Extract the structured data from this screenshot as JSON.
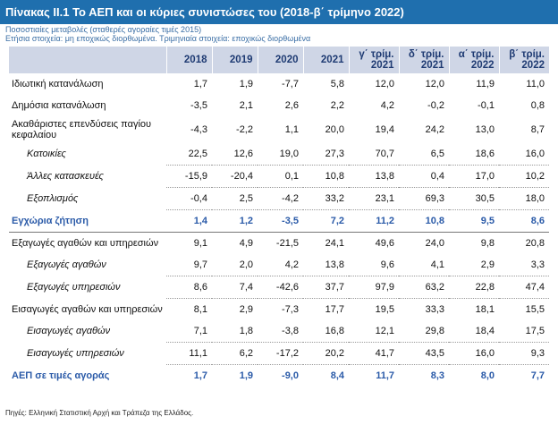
{
  "title": "Πίνακας ΙΙ.1 Το ΑΕΠ και οι κύριες συνιστώσες του (2018-β΄ τρίμηνο 2022)",
  "subtitle1": "Ποσοστιαίες μεταβολές (σταθερές αγοραίες τιμές 2015)",
  "subtitle2": "Ετήσια στοιχεία: μη εποχικώς διορθωμένα. Τριμηνιαία στοιχεία: εποχικώς διορθωμένα",
  "columns": [
    {
      "l1": "2018",
      "l2": ""
    },
    {
      "l1": "2019",
      "l2": ""
    },
    {
      "l1": "2020",
      "l2": ""
    },
    {
      "l1": "2021",
      "l2": ""
    },
    {
      "l1": "γ΄ τρίμ.",
      "l2": "2021"
    },
    {
      "l1": "δ΄ τρίμ.",
      "l2": "2021"
    },
    {
      "l1": "α΄ τρίμ.",
      "l2": "2022"
    },
    {
      "l1": "β΄ τρίμ.",
      "l2": "2022"
    }
  ],
  "rows": [
    {
      "label": "Ιδιωτική κατανάλωση",
      "values": [
        "1,7",
        "1,9",
        "-7,7",
        "5,8",
        "12,0",
        "12,0",
        "11,9",
        "11,0"
      ]
    },
    {
      "label": "Δημόσια κατανάλωση",
      "values": [
        "-3,5",
        "2,1",
        "2,6",
        "2,2",
        "4,2",
        "-0,2",
        "-0,1",
        "0,8"
      ]
    },
    {
      "label": "Ακαθάριστες επενδύσεις παγίου κεφαλαίου",
      "values": [
        "-4,3",
        "-2,2",
        "1,1",
        "20,0",
        "19,4",
        "24,2",
        "13,0",
        "8,7"
      ]
    },
    {
      "label": "Κατοικίες",
      "values": [
        "22,5",
        "12,6",
        "19,0",
        "27,3",
        "70,7",
        "6,5",
        "18,6",
        "16,0"
      ]
    },
    {
      "label": "Άλλες κατασκευές",
      "values": [
        "-15,9",
        "-20,4",
        "0,1",
        "10,8",
        "13,8",
        "0,4",
        "17,0",
        "10,2"
      ]
    },
    {
      "label": "Εξοπλισμός",
      "values": [
        "-0,4",
        "2,5",
        "-4,2",
        "33,2",
        "23,1",
        "69,3",
        "30,5",
        "18,0"
      ]
    },
    {
      "label": "Εγχώρια ζήτηση",
      "values": [
        "1,4",
        "1,2",
        "-3,5",
        "7,2",
        "11,2",
        "10,8",
        "9,5",
        "8,6"
      ]
    },
    {
      "label": "Εξαγωγές αγαθών και υπηρεσιών",
      "values": [
        "9,1",
        "4,9",
        "-21,5",
        "24,1",
        "49,6",
        "24,0",
        "9,8",
        "20,8"
      ]
    },
    {
      "label": "Εξαγωγές αγαθών",
      "values": [
        "9,7",
        "2,0",
        "4,2",
        "13,8",
        "9,6",
        "4,1",
        "2,9",
        "3,3"
      ]
    },
    {
      "label": "Εξαγωγές υπηρεσιών",
      "values": [
        "8,6",
        "7,4",
        "-42,6",
        "37,7",
        "97,9",
        "63,2",
        "22,8",
        "47,4"
      ]
    },
    {
      "label": "Εισαγωγές αγαθών και υπηρεσιών",
      "values": [
        "8,1",
        "2,9",
        "-7,3",
        "17,7",
        "19,5",
        "33,3",
        "18,1",
        "15,5"
      ]
    },
    {
      "label": "Εισαγωγές αγαθών",
      "values": [
        "7,1",
        "1,8",
        "-3,8",
        "16,8",
        "12,1",
        "29,8",
        "18,4",
        "17,5"
      ]
    },
    {
      "label": "Εισαγωγές υπηρεσιών",
      "values": [
        "11,1",
        "6,2",
        "-17,2",
        "20,2",
        "41,7",
        "43,5",
        "16,0",
        "9,3"
      ]
    },
    {
      "label": "ΑΕΠ σε τιμές αγοράς",
      "values": [
        "1,7",
        "1,9",
        "-9,0",
        "8,4",
        "11,7",
        "8,3",
        "8,0",
        "7,7"
      ]
    }
  ],
  "source": "Πηγές: Ελληνική Στατιστική Αρχή και Τράπεζα της Ελλάδος."
}
